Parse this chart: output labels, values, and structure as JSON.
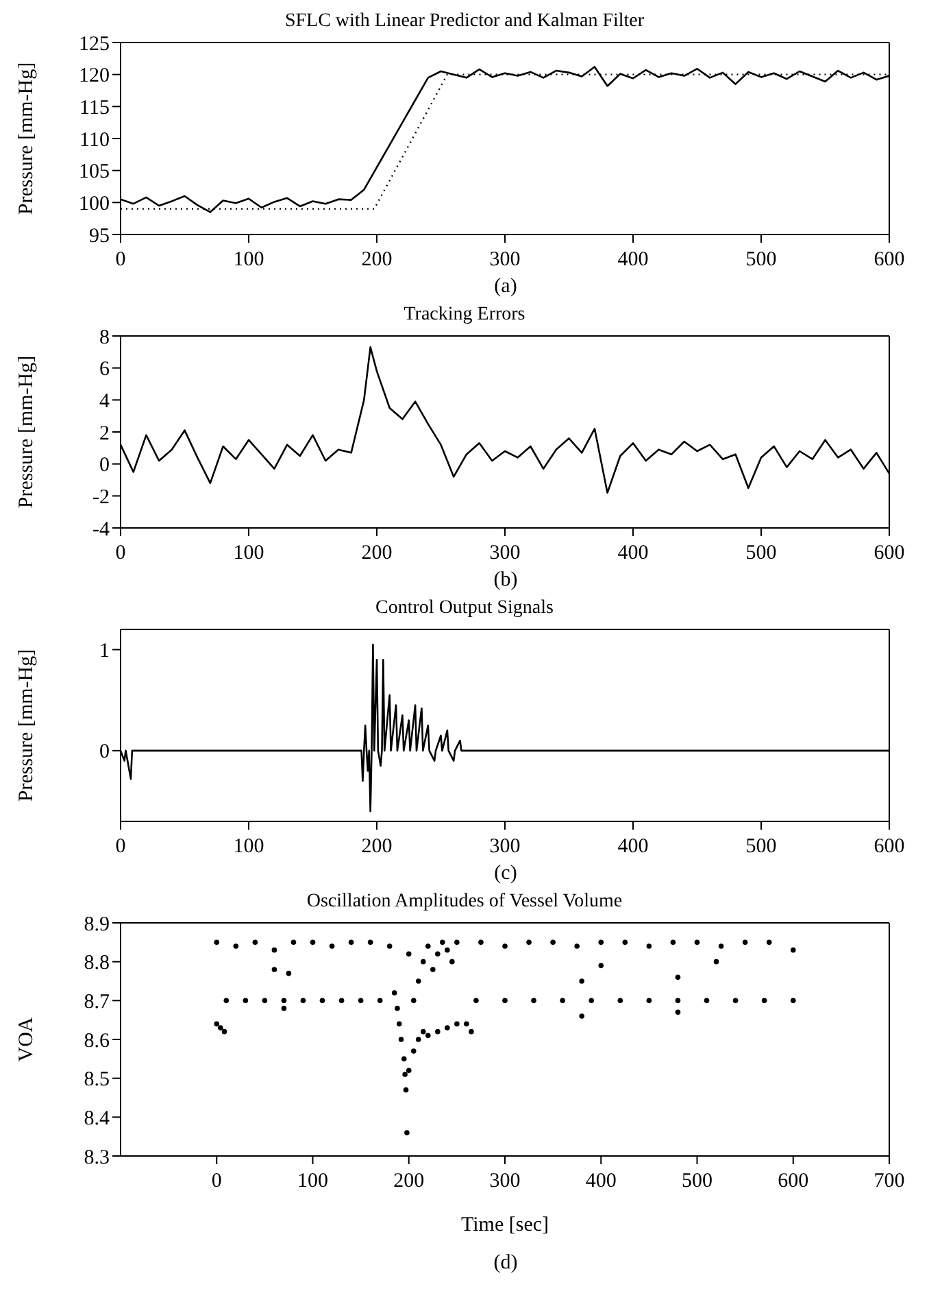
{
  "chart_data": [
    {
      "type": "line",
      "title": "SFLC with Linear Predictor and Kalman Filter",
      "ylabel": "Pressure [mm-Hg]",
      "annotations": [
        "(a)"
      ],
      "marker": "none",
      "xlim": [
        0,
        600
      ],
      "xticks": [
        0,
        100,
        200,
        300,
        400,
        500,
        600
      ],
      "ylim": [
        95,
        125
      ],
      "yticks": [
        95,
        100,
        105,
        110,
        115,
        120,
        125
      ],
      "series": [
        {
          "color": "#000000",
          "line_style": "dotted",
          "x": [
            0,
            198,
            255,
            600
          ],
          "values": [
            99,
            99,
            120,
            120
          ]
        },
        {
          "color": "#000000",
          "line_style": "solid",
          "x": [
            0,
            10,
            20,
            30,
            40,
            50,
            60,
            70,
            80,
            90,
            100,
            110,
            120,
            130,
            140,
            150,
            160,
            170,
            180,
            190,
            200,
            210,
            220,
            230,
            240,
            250,
            260,
            270,
            280,
            290,
            300,
            310,
            320,
            330,
            340,
            350,
            360,
            370,
            380,
            390,
            400,
            410,
            420,
            430,
            440,
            450,
            460,
            470,
            480,
            490,
            500,
            510,
            520,
            530,
            540,
            550,
            560,
            570,
            580,
            590,
            600
          ],
          "values": [
            100.5,
            99.8,
            100.8,
            99.5,
            100.2,
            101,
            99.6,
            98.5,
            100.3,
            99.9,
            100.6,
            99.2,
            100.1,
            100.7,
            99.4,
            100.2,
            99.8,
            100.5,
            100.4,
            102,
            105.5,
            109,
            112.5,
            116,
            119.5,
            120.5,
            120,
            119.5,
            120.8,
            119.6,
            120.2,
            119.8,
            120.4,
            119.5,
            120.6,
            120.3,
            119.7,
            121.2,
            118.2,
            120.1,
            119.4,
            120.7,
            119.6,
            120.2,
            119.8,
            120.9,
            119.5,
            120.3,
            118.5,
            120.4,
            119.6,
            120.2,
            119.3,
            120.5,
            119.7,
            118.9,
            120.6,
            119.5,
            120.3,
            119.2,
            119.8
          ]
        }
      ]
    },
    {
      "type": "line",
      "title": "Tracking Errors",
      "ylabel": "Pressure [mm-Hg]",
      "annotations": [
        "(b)"
      ],
      "marker": "none",
      "xlim": [
        0,
        600
      ],
      "xticks": [
        0,
        100,
        200,
        300,
        400,
        500,
        600
      ],
      "ylim": [
        -4,
        8
      ],
      "yticks": [
        -4,
        -2,
        0,
        2,
        4,
        6,
        8
      ],
      "series": [
        {
          "color": "#000000",
          "x": [
            0,
            10,
            20,
            30,
            40,
            50,
            60,
            70,
            80,
            90,
            100,
            110,
            120,
            130,
            140,
            150,
            160,
            170,
            180,
            190,
            195,
            200,
            210,
            220,
            230,
            240,
            250,
            260,
            270,
            280,
            290,
            300,
            310,
            320,
            330,
            340,
            350,
            360,
            370,
            380,
            390,
            400,
            410,
            420,
            430,
            440,
            450,
            460,
            470,
            480,
            490,
            500,
            510,
            520,
            530,
            540,
            550,
            560,
            570,
            580,
            590,
            600
          ],
          "values": [
            1.2,
            -0.5,
            1.8,
            0.2,
            0.9,
            2.1,
            0.4,
            -1.2,
            1.1,
            0.3,
            1.5,
            0.6,
            -0.3,
            1.2,
            0.5,
            1.8,
            0.2,
            0.9,
            0.7,
            4,
            7.3,
            5.8,
            3.5,
            2.8,
            3.9,
            2.5,
            1.2,
            -0.8,
            0.6,
            1.3,
            0.2,
            0.8,
            0.4,
            1.1,
            -0.3,
            0.9,
            1.6,
            0.7,
            2.2,
            -1.8,
            0.5,
            1.3,
            0.2,
            0.9,
            0.6,
            1.4,
            0.8,
            1.2,
            0.3,
            0.6,
            -1.5,
            0.4,
            1.1,
            -0.2,
            0.8,
            0.3,
            1.5,
            0.4,
            0.9,
            -0.3,
            0.7,
            -0.6
          ]
        }
      ]
    },
    {
      "type": "line",
      "title": "Control Output Signals",
      "ylabel": "Pressure [mm-Hg]",
      "annotations": [
        "(c)"
      ],
      "marker": "none",
      "xlim": [
        0,
        600
      ],
      "xticks": [
        0,
        100,
        200,
        300,
        400,
        500,
        600
      ],
      "ylim": [
        -0.7,
        1.2
      ],
      "yticks": [
        0,
        1
      ],
      "series": [
        {
          "color": "#000000",
          "x": [
            0,
            3,
            4,
            8,
            9,
            188,
            189,
            190,
            191,
            192,
            193,
            194,
            195,
            196,
            197,
            198,
            200,
            201,
            203,
            204,
            205,
            206,
            210,
            211,
            215,
            216,
            220,
            221,
            225,
            226,
            230,
            231,
            235,
            236,
            240,
            241,
            245,
            246,
            250,
            251,
            255,
            256,
            260,
            261,
            265,
            266,
            600
          ],
          "values": [
            0,
            -0.1,
            0,
            -0.28,
            0,
            0,
            -0.3,
            0,
            0.25,
            0,
            -0.2,
            0,
            -0.6,
            0,
            1.05,
            0,
            0.9,
            0,
            -0.15,
            0,
            0.9,
            0,
            0.55,
            0,
            0.45,
            0,
            0.35,
            0,
            0.3,
            0,
            0.45,
            0,
            0.42,
            0,
            0.25,
            0,
            -0.1,
            0,
            0.15,
            0,
            0.2,
            0,
            -0.1,
            0,
            0.1,
            0,
            0
          ]
        }
      ]
    },
    {
      "type": "scatter",
      "title": "Oscillation Amplitudes of Vessel Volume",
      "xlabel": "Time [sec]",
      "ylabel": "VOA",
      "annotations": [
        "(d)"
      ],
      "marker": "circle",
      "xlim": [
        -100,
        700
      ],
      "xticks": [
        0,
        100,
        200,
        300,
        400,
        500,
        600,
        700
      ],
      "ylim": [
        8.3,
        8.9
      ],
      "yticks": [
        8.3,
        8.4,
        8.5,
        8.6,
        8.7,
        8.8,
        8.9
      ],
      "series": [
        {
          "color": "#000000",
          "x": [
            0,
            20,
            40,
            60,
            80,
            100,
            120,
            140,
            160,
            180,
            250,
            275,
            300,
            325,
            350,
            375,
            400,
            425,
            450,
            475,
            500,
            525,
            550,
            575,
            600,
            10,
            30,
            50,
            70,
            90,
            110,
            130,
            150,
            170,
            270,
            300,
            330,
            360,
            390,
            420,
            450,
            480,
            510,
            540,
            570,
            600,
            0,
            4,
            8,
            60,
            75,
            380,
            400,
            480,
            520,
            70,
            380,
            480,
            185,
            188,
            190,
            192,
            195,
            196,
            197,
            198,
            200,
            205,
            210,
            215,
            220,
            230,
            240,
            250,
            260,
            265,
            200,
            205,
            210,
            215,
            220,
            225,
            230,
            235,
            240,
            245
          ],
          "values": [
            8.85,
            8.84,
            8.85,
            8.83,
            8.85,
            8.85,
            8.84,
            8.85,
            8.85,
            8.84,
            8.85,
            8.85,
            8.84,
            8.85,
            8.85,
            8.84,
            8.85,
            8.85,
            8.84,
            8.85,
            8.85,
            8.84,
            8.85,
            8.85,
            8.83,
            8.7,
            8.7,
            8.7,
            8.7,
            8.7,
            8.7,
            8.7,
            8.7,
            8.7,
            8.7,
            8.7,
            8.7,
            8.7,
            8.7,
            8.7,
            8.7,
            8.7,
            8.7,
            8.7,
            8.7,
            8.7,
            8.64,
            8.63,
            8.62,
            8.78,
            8.77,
            8.75,
            8.79,
            8.76,
            8.8,
            8.68,
            8.66,
            8.67,
            8.72,
            8.68,
            8.64,
            8.6,
            8.55,
            8.51,
            8.47,
            8.36,
            8.52,
            8.57,
            8.6,
            8.62,
            8.61,
            8.62,
            8.63,
            8.64,
            8.64,
            8.62,
            8.82,
            8.7,
            8.75,
            8.8,
            8.84,
            8.78,
            8.82,
            8.85,
            8.83,
            8.8
          ]
        }
      ]
    }
  ]
}
